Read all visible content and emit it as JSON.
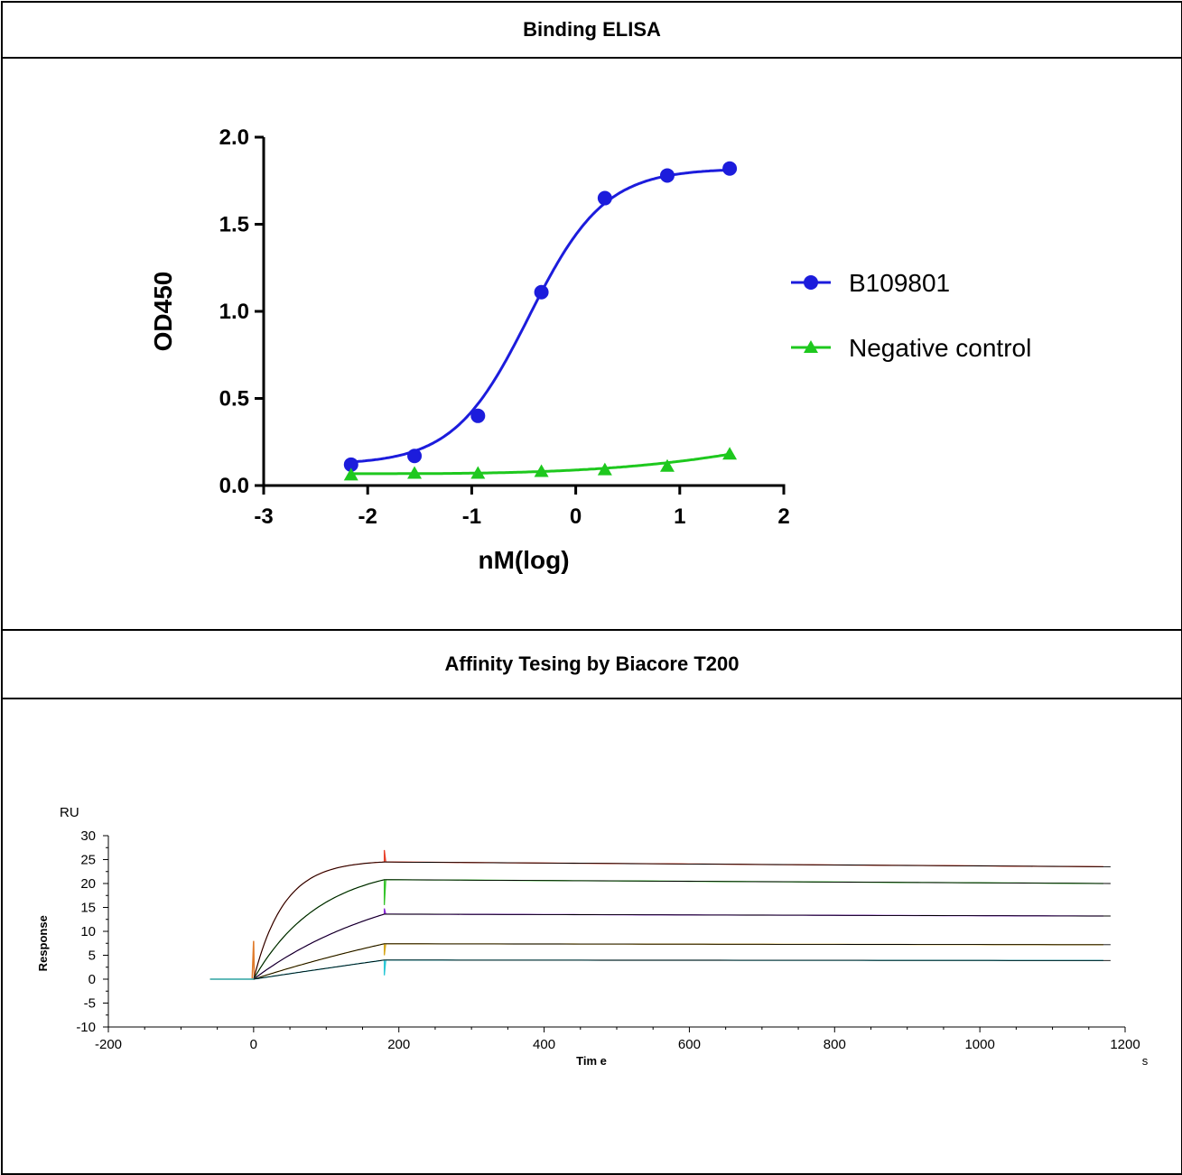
{
  "panels": [
    {
      "title": "Binding ELISA"
    },
    {
      "title": "Affinity Tesing by Biacore T200"
    }
  ],
  "chart_data": [
    {
      "type": "scatter",
      "title": "Binding ELISA",
      "xlabel": "nM(log)",
      "ylabel": "OD450",
      "xlim": [
        -3,
        2
      ],
      "ylim": [
        0,
        2.0
      ],
      "xticks": [
        "-3",
        "-2",
        "-1",
        "0",
        "1",
        "2"
      ],
      "yticks": [
        "0.0",
        "0.5",
        "1.0",
        "1.5",
        "2.0"
      ],
      "legend_position": "right",
      "grid": false,
      "fit": "sigmoidal",
      "series": [
        {
          "name": "B109801",
          "color": "#1c1cdc",
          "marker": "circle",
          "x": [
            -2.16,
            -1.55,
            -0.94,
            -0.33,
            0.28,
            0.88,
            1.48
          ],
          "y": [
            0.12,
            0.17,
            0.4,
            1.11,
            1.65,
            1.78,
            1.82
          ],
          "fit_params": {
            "bottom": 0.12,
            "top": 1.82,
            "logec50": -0.45,
            "hill": 1.2
          }
        },
        {
          "name": "Negative control",
          "color": "#1ec81e",
          "marker": "triangle",
          "x": [
            -2.16,
            -1.55,
            -0.94,
            -0.33,
            0.28,
            0.88,
            1.48
          ],
          "y": [
            0.06,
            0.07,
            0.07,
            0.08,
            0.09,
            0.11,
            0.18
          ]
        }
      ]
    },
    {
      "type": "line",
      "title": "Affinity Tesing by Biacore T200",
      "xlabel": "Tim e",
      "xunit": "s",
      "ylabel": "Response",
      "yunit": "RU",
      "xlim": [
        -200,
        1200
      ],
      "ylim": [
        -10,
        30
      ],
      "xticks": [
        "-200",
        "0",
        "200",
        "400",
        "600",
        "800",
        "1000",
        "1200"
      ],
      "yticks": [
        "-10",
        "-5",
        "0",
        "5",
        "10",
        "15",
        "20",
        "25",
        "30"
      ],
      "grid": false,
      "baseline_start": -60,
      "association_start": 0,
      "dissociation_start": 180,
      "end": 1180,
      "series": [
        {
          "color": "#e8402a",
          "plateau": 24.5,
          "end_value": 23.5,
          "k": 0.024,
          "spike": 27.0
        },
        {
          "color": "#34c42a",
          "plateau": 20.8,
          "end_value": 20.0,
          "k": 0.011,
          "spike": 15.5
        },
        {
          "color": "#8a2ad6",
          "plateau": 13.6,
          "end_value": 13.2,
          "k": 0.005,
          "spike": 14.8
        },
        {
          "color": "#d6a81e",
          "plateau": 7.4,
          "end_value": 7.2,
          "k": 0.002,
          "spike": 5.0
        },
        {
          "color": "#2ac8d6",
          "plateau": 4.0,
          "end_value": 3.9,
          "k": 0.0005,
          "spike": 0.8
        }
      ]
    }
  ]
}
